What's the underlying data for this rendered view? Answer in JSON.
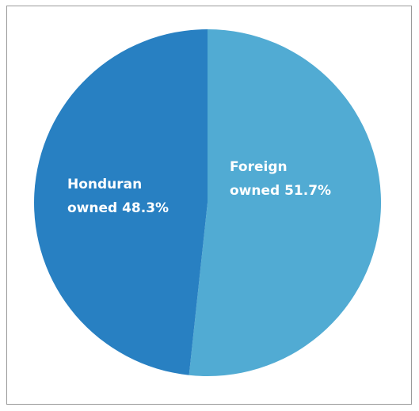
{
  "chart_data": {
    "type": "pie",
    "title": "",
    "slices": [
      {
        "label_lines": [
          "Foreign",
          "owned 51.7%"
        ],
        "value": 51.7,
        "color": "#51abd3"
      },
      {
        "label_lines": [
          "Honduran",
          "owned 48.3%"
        ],
        "value": 48.3,
        "color": "#2880c2"
      }
    ],
    "start_angle": "12 o'clock",
    "direction": "clockwise",
    "legend": "none"
  }
}
